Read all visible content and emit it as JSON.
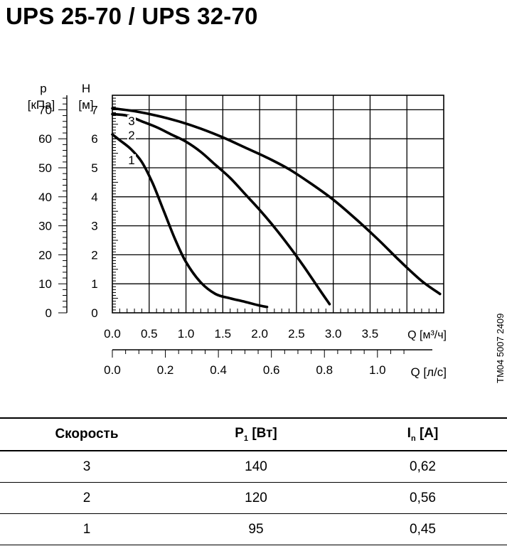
{
  "title": "UPS 25-70 / UPS 32-70",
  "figure_code": "TM04 5007 2409",
  "chart_data": {
    "type": "line",
    "ylabel_left_symbol": "p",
    "ylabel_left_unit": "[кПа]",
    "ylabel_symbol": "H",
    "ylabel_unit": "[м]",
    "xlabel": "Q [м³/ч]",
    "xlabel_secondary": "Q [л/с]",
    "xlim": [
      0,
      4.5
    ],
    "ylim": [
      0,
      7.5
    ],
    "x_ticks": [
      "0.0",
      "0.5",
      "1.0",
      "1.5",
      "2.0",
      "2.5",
      "3.0",
      "3.5"
    ],
    "x_tick_values": [
      0,
      0.5,
      1.0,
      1.5,
      2.0,
      2.5,
      3.0,
      3.5
    ],
    "y_ticks": [
      "0",
      "1",
      "2",
      "3",
      "4",
      "5",
      "6",
      "7"
    ],
    "y_tick_values": [
      0,
      1,
      2,
      3,
      4,
      5,
      6,
      7
    ],
    "p_ticks": [
      "0",
      "10",
      "20",
      "30",
      "40",
      "50",
      "60",
      "70"
    ],
    "p_tick_values": [
      0,
      10,
      20,
      30,
      40,
      50,
      60,
      70
    ],
    "x2_ticks": [
      "0.0",
      "0.2",
      "0.4",
      "0.6",
      "0.8",
      "1.0"
    ],
    "x2_tick_values": [
      0,
      0.2,
      0.4,
      0.6,
      0.8,
      1.0
    ],
    "grid": true,
    "series": [
      {
        "name": "1",
        "x": [
          0.0,
          0.1,
          0.25,
          0.4,
          0.55,
          0.7,
          0.85,
          1.0,
          1.2,
          1.4,
          1.6,
          1.8,
          2.0,
          2.1
        ],
        "y": [
          6.15,
          5.95,
          5.65,
          5.2,
          4.45,
          3.5,
          2.55,
          1.75,
          1.05,
          0.65,
          0.5,
          0.38,
          0.25,
          0.2
        ]
      },
      {
        "name": "2",
        "x": [
          0.0,
          0.2,
          0.4,
          0.6,
          0.8,
          1.0,
          1.2,
          1.4,
          1.6,
          1.8,
          2.0,
          2.2,
          2.4,
          2.6,
          2.8,
          2.95
        ],
        "y": [
          6.85,
          6.8,
          6.6,
          6.4,
          6.15,
          5.9,
          5.55,
          5.1,
          4.65,
          4.1,
          3.55,
          2.95,
          2.3,
          1.6,
          0.85,
          0.3
        ]
      },
      {
        "name": "3",
        "x": [
          0.0,
          0.3,
          0.6,
          0.9,
          1.2,
          1.5,
          1.8,
          2.1,
          2.4,
          2.7,
          3.0,
          3.3,
          3.6,
          3.9,
          4.2,
          4.45
        ],
        "y": [
          7.05,
          6.95,
          6.8,
          6.6,
          6.35,
          6.05,
          5.7,
          5.35,
          4.95,
          4.45,
          3.9,
          3.25,
          2.55,
          1.8,
          1.1,
          0.65
        ]
      }
    ]
  },
  "table": {
    "headers": {
      "speed": "Скорость",
      "p1": "P",
      "p1_sub": "1",
      "p1_unit": " [Вт]",
      "in": "I",
      "in_sub": "n",
      "in_unit": " [A]"
    },
    "rows": [
      {
        "speed": "3",
        "p1": "140",
        "in": "0,62"
      },
      {
        "speed": "2",
        "p1": "120",
        "in": "0,56"
      },
      {
        "speed": "1",
        "p1": "95",
        "in": "0,45"
      }
    ]
  }
}
